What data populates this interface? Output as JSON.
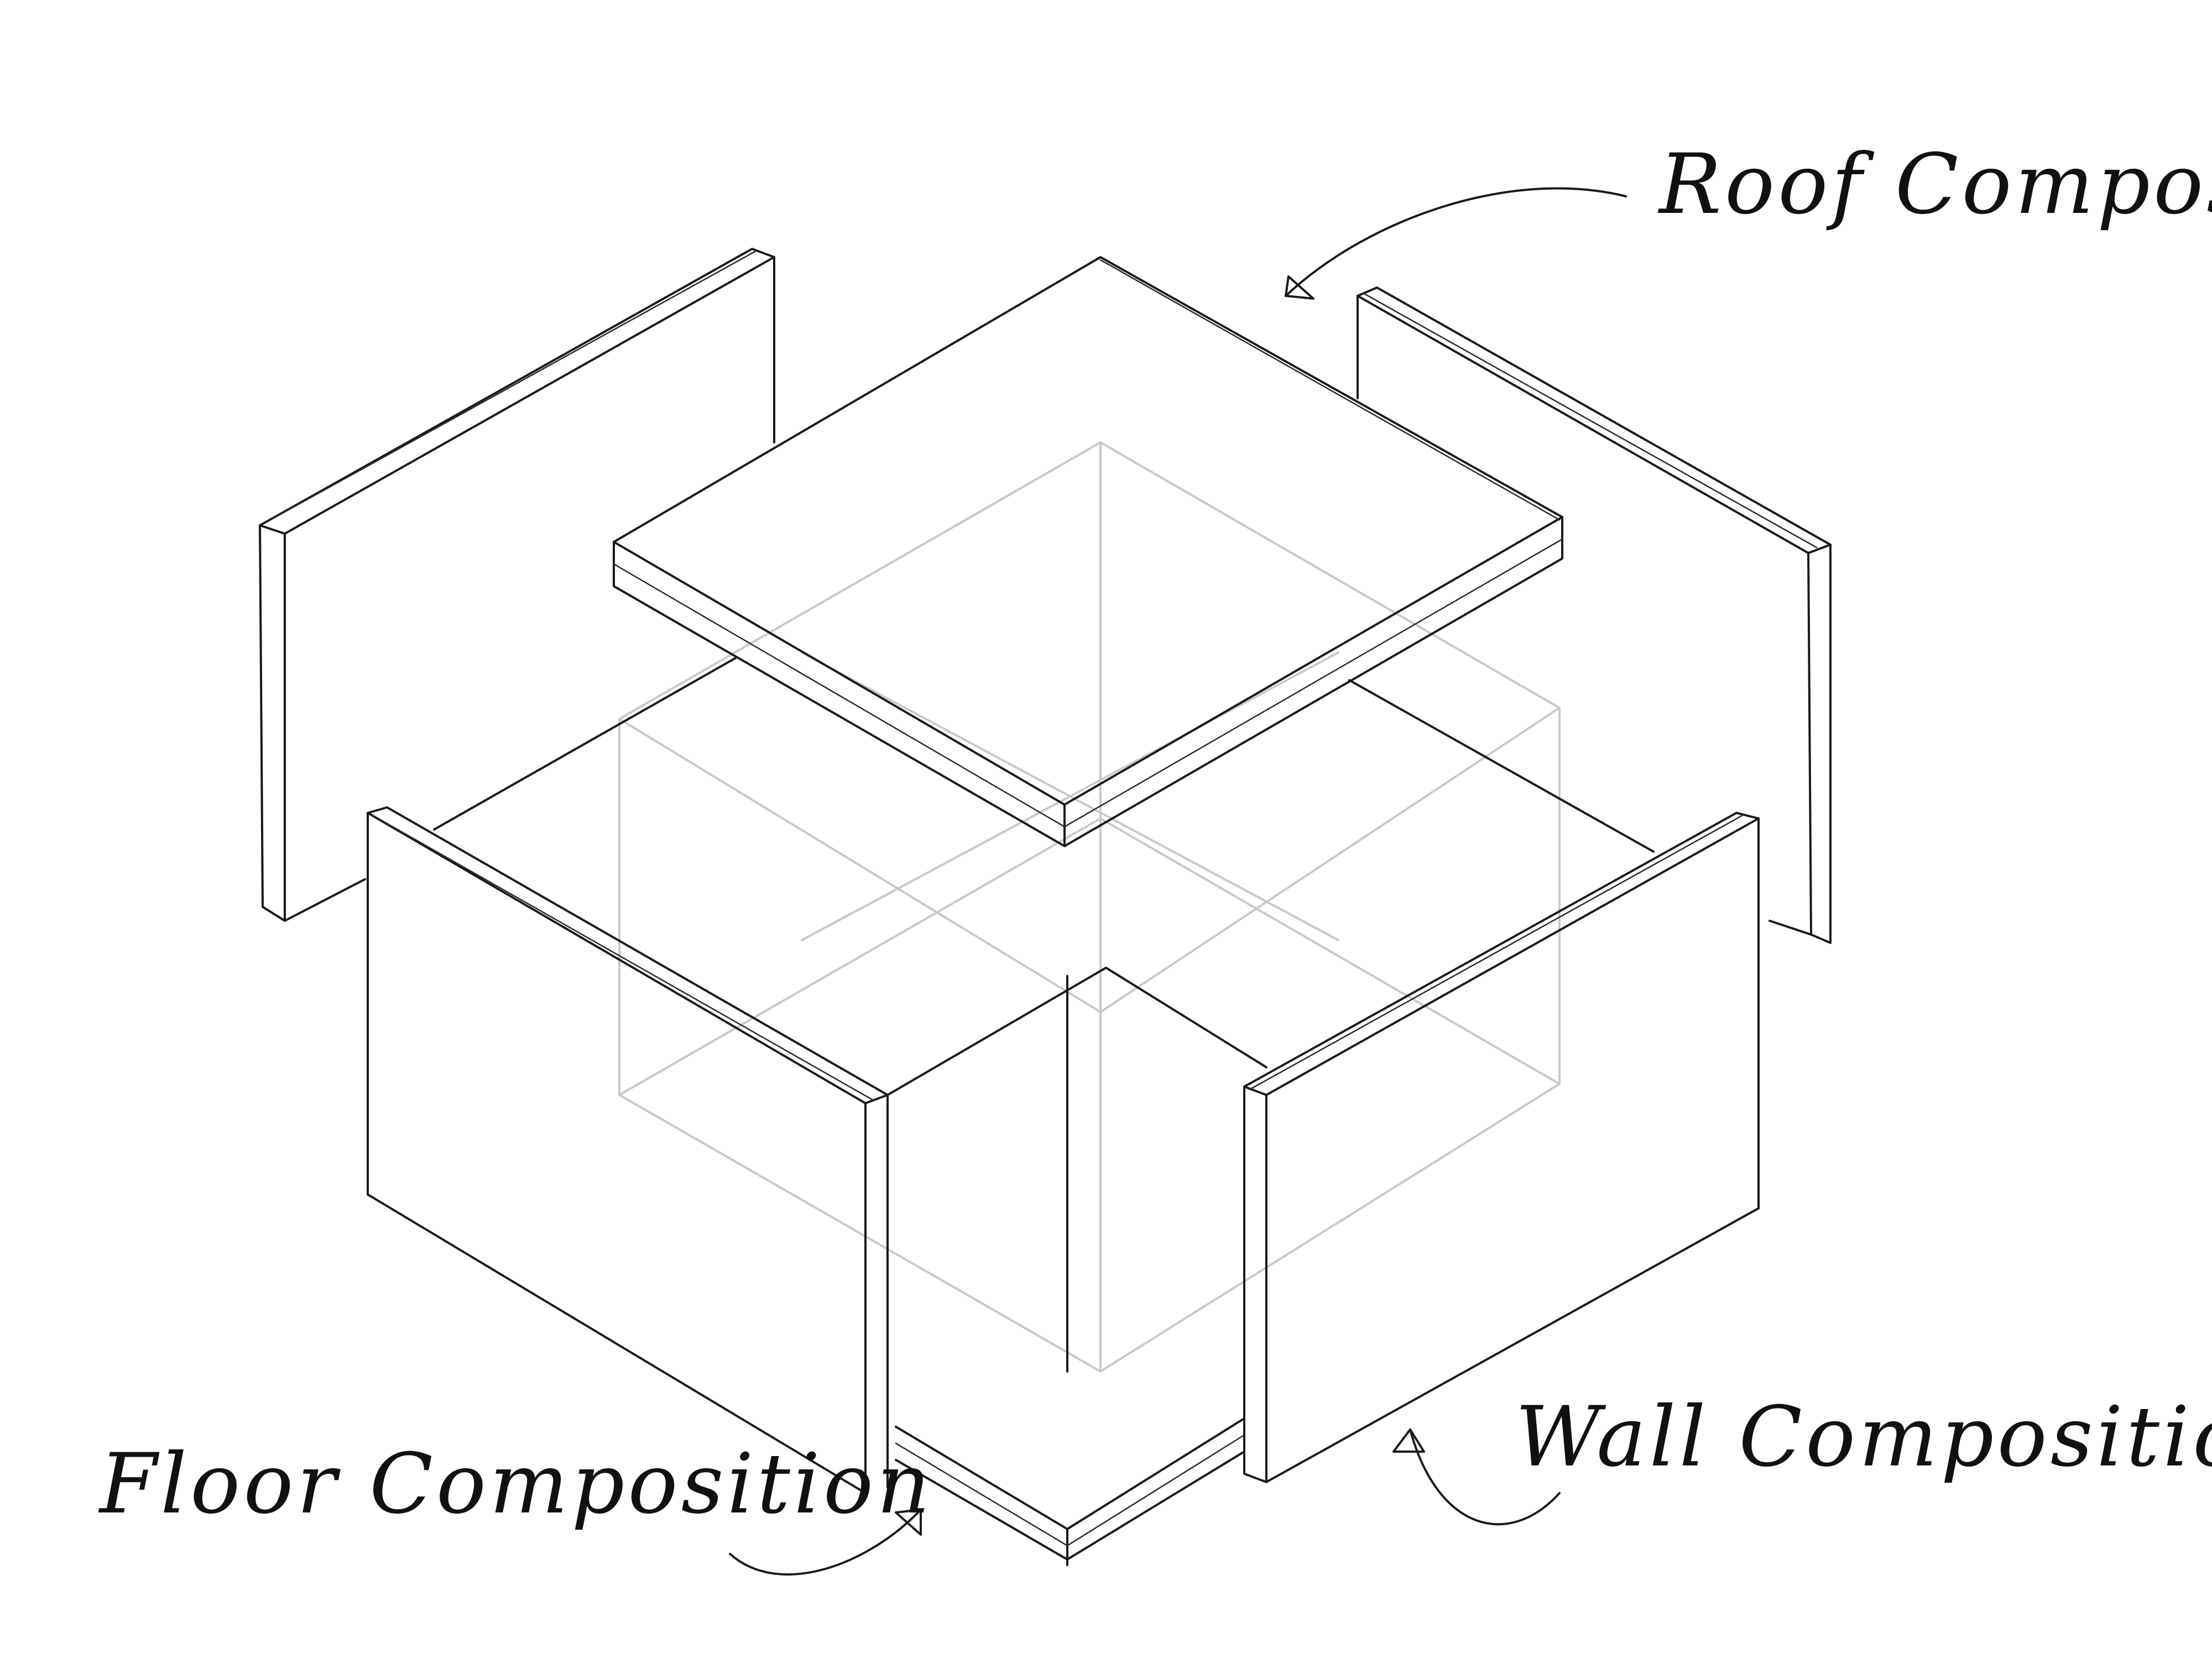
{
  "diagram": {
    "labels": {
      "roof": "Roof Composition",
      "wall": "Wall Composition",
      "floor": "Floor Composition"
    },
    "colors": {
      "ink": "#1a1a1a",
      "ghost_frame": "#c9c9c9",
      "background": "#ffffff"
    }
  }
}
